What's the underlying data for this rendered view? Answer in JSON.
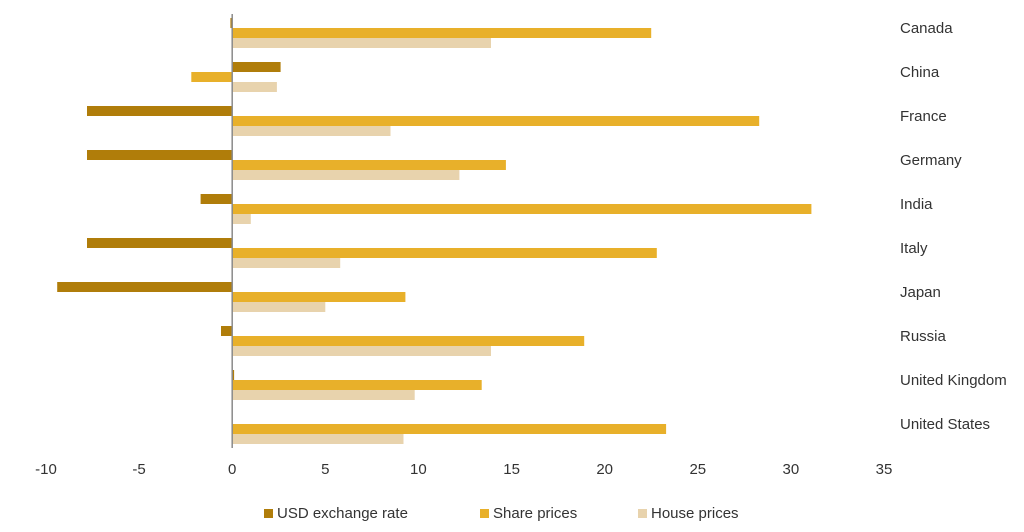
{
  "chart_data": {
    "type": "bar",
    "orientation": "horizontal",
    "categories": [
      "Canada",
      "China",
      "France",
      "Germany",
      "India",
      "Italy",
      "Japan",
      "Russia",
      "United Kingdom",
      "United States"
    ],
    "series": [
      {
        "name": "USD exchange rate",
        "color": "#b07d0a",
        "values": [
          -0.1,
          2.6,
          -7.8,
          -7.8,
          -1.7,
          -7.8,
          -9.4,
          -0.6,
          0.1,
          0.0
        ]
      },
      {
        "name": "Share prices",
        "color": "#e8b02a",
        "values": [
          22.5,
          -2.2,
          28.3,
          14.7,
          31.1,
          22.8,
          9.3,
          18.9,
          13.4,
          23.3
        ]
      },
      {
        "name": "House prices",
        "color": "#e8d3ad",
        "values": [
          13.9,
          2.4,
          8.5,
          12.2,
          1.0,
          5.8,
          5.0,
          13.9,
          9.8,
          9.2
        ]
      }
    ],
    "xlim": [
      -10,
      35
    ],
    "xticks": [
      -10,
      -5,
      0,
      5,
      10,
      15,
      20,
      25,
      30,
      35
    ],
    "title": "",
    "xlabel": "",
    "ylabel": "",
    "grid": false,
    "legend_position": "bottom"
  }
}
